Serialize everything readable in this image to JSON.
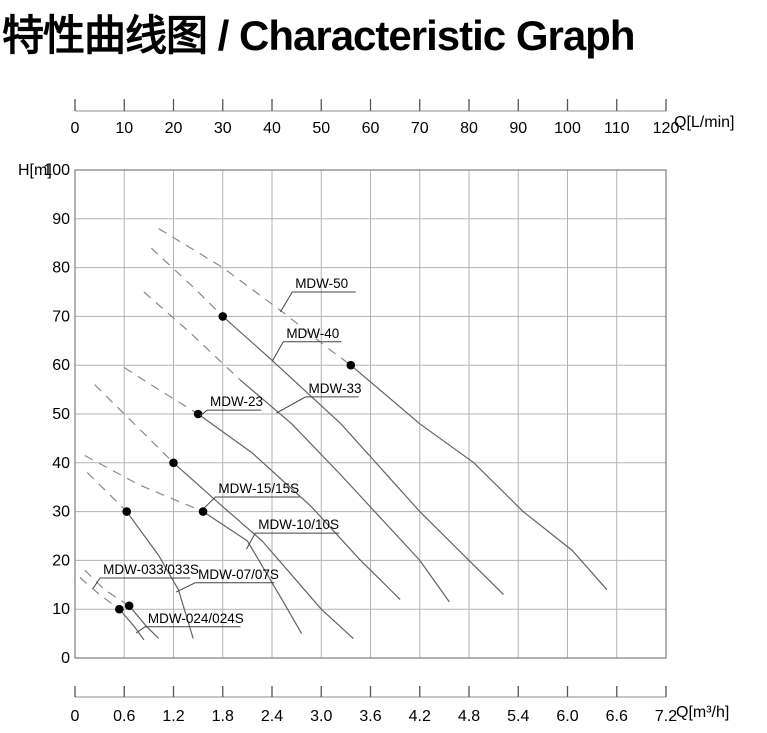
{
  "title": "特性曲线图 / Characteristic Graph",
  "chart_data": {
    "type": "line",
    "title": "特性曲线图 / Characteristic Graph",
    "grid": true,
    "top_axis": {
      "label": "Q[L/min]",
      "max": 120,
      "ticks": [
        0,
        10,
        20,
        30,
        40,
        50,
        60,
        70,
        80,
        90,
        100,
        110,
        120
      ]
    },
    "bottom_axis": {
      "label": "Q[m³/h]",
      "max": 7.2,
      "ticks": [
        "0",
        "0.6",
        "1.2",
        "1.8",
        "2.4",
        "3.0",
        "3.6",
        "4.2",
        "4.8",
        "5.4",
        "6.0",
        "6.6",
        "7.2"
      ]
    },
    "y_axis": {
      "label": "H[m]",
      "max": 100,
      "ticks": [
        100,
        90,
        80,
        70,
        60,
        50,
        40,
        30,
        20,
        10,
        0
      ]
    },
    "colors": {
      "grid": "#b3b3b3",
      "border": "#7f7f7f",
      "curve": "#636363",
      "dashed_curve": "#8a8a8a",
      "dot": "#000000",
      "text": "#000000",
      "leader": "#444444"
    },
    "units_note": "series points are [Q in L/min, H in m]; dots mark rated duty points",
    "series": [
      {
        "name": "MDW-50",
        "dashed": [
          [
            17,
            88
          ],
          [
            30,
            80
          ],
          [
            42,
            71
          ],
          [
            52,
            63
          ],
          [
            56,
            60
          ]
        ],
        "solid": [
          [
            56,
            60
          ],
          [
            70,
            48
          ],
          [
            81,
            40
          ],
          [
            91,
            30
          ],
          [
            101,
            22
          ],
          [
            108,
            14
          ]
        ],
        "dot": [
          56,
          60
        ],
        "label": {
          "text": "MDW-50",
          "underline_q": [
            44.1,
            57.0
          ],
          "underline_h": 75.0,
          "leader_end": [
            41.7,
            70.9
          ]
        }
      },
      {
        "name": "MDW-40",
        "dashed": [
          [
            15.5,
            84
          ],
          [
            24,
            76
          ],
          [
            30,
            70
          ]
        ],
        "solid": [
          [
            30,
            70
          ],
          [
            40,
            61
          ],
          [
            54,
            48
          ],
          [
            70,
            30
          ],
          [
            80,
            20
          ],
          [
            87,
            13
          ]
        ],
        "dot": [
          30,
          70
        ],
        "label": {
          "text": "MDW-40",
          "underline_q": [
            42.3,
            54.1
          ],
          "underline_h": 64.8,
          "leader_end": [
            40.1,
            60.9
          ]
        }
      },
      {
        "name": "MDW-33",
        "dashed": [
          [
            14,
            75
          ],
          [
            23,
            67
          ],
          [
            33.5,
            57
          ]
        ],
        "solid": [
          [
            33.5,
            57
          ],
          [
            44,
            48
          ],
          [
            54,
            37.5
          ],
          [
            70,
            20
          ],
          [
            76,
            11.5
          ]
        ],
        "dot": null,
        "label": {
          "text": "MDW-33",
          "underline_q": [
            46.8,
            57.6
          ],
          "underline_h": 53.5,
          "leader_end": [
            40.9,
            50.2
          ]
        }
      },
      {
        "name": "MDW-23",
        "dashed": [
          [
            10,
            59.5
          ],
          [
            17,
            55
          ],
          [
            25,
            50
          ]
        ],
        "solid": [
          [
            25,
            50
          ],
          [
            36,
            42
          ],
          [
            48,
            31
          ],
          [
            58,
            20
          ],
          [
            66,
            12
          ]
        ],
        "dot": [
          25,
          50
        ],
        "label": {
          "text": "MDW-23",
          "underline_q": [
            26.8,
            37.8
          ],
          "underline_h": 50.8,
          "leader_end": [
            25.4,
            49.6
          ]
        }
      },
      {
        "name": "MDW-15/15S",
        "dashed": [
          [
            4,
            56
          ],
          [
            13,
            47
          ],
          [
            20,
            40
          ]
        ],
        "solid": [
          [
            20,
            40
          ],
          [
            30,
            31
          ],
          [
            38,
            24
          ],
          [
            50,
            10
          ],
          [
            56.5,
            4
          ]
        ],
        "dot": [
          20,
          40
        ],
        "label": {
          "text": "MDW-15/15S",
          "underline_q": [
            28.5,
            45.6
          ],
          "underline_h": 33.0,
          "leader_end": [
            26.2,
            30.7
          ]
        }
      },
      {
        "name": "MDW-10/10S",
        "dashed": [
          [
            2,
            41.5
          ],
          [
            13,
            35.5
          ],
          [
            26,
            30
          ]
        ],
        "solid": [
          [
            26,
            30
          ],
          [
            35,
            24
          ],
          [
            42,
            12
          ],
          [
            46,
            5
          ]
        ],
        "dot": [
          26,
          30
        ],
        "label": {
          "text": "MDW-10/10S",
          "underline_q": [
            36.6,
            53.7
          ],
          "underline_h": 25.6,
          "leader_end": [
            34.8,
            22.3
          ]
        }
      },
      {
        "name": "MDW-07/07S",
        "dashed": [
          [
            2.5,
            38
          ],
          [
            7,
            33.5
          ],
          [
            10.5,
            30
          ]
        ],
        "solid": [
          [
            10.5,
            30
          ],
          [
            17,
            21
          ],
          [
            21,
            14
          ],
          [
            24,
            4
          ]
        ],
        "dot": [
          10.5,
          30
        ],
        "label": {
          "text": "MDW-07/07S",
          "underline_q": [
            24.4,
            40.5
          ],
          "underline_h": 15.4,
          "leader_end": [
            20.5,
            13.5
          ]
        }
      },
      {
        "name": "MDW-033/033S",
        "dashed": [
          [
            2,
            18
          ],
          [
            6,
            14
          ],
          [
            11,
            10.7
          ]
        ],
        "solid": [
          [
            11,
            10.7
          ],
          [
            14.5,
            6.5
          ],
          [
            17,
            4
          ]
        ],
        "dot": [
          11,
          10.7
        ],
        "label": {
          "text": "MDW-033/033S",
          "underline_q": [
            5.1,
            23.4
          ],
          "underline_h": 16.4,
          "leader_end": [
            3.7,
            14.3
          ]
        }
      },
      {
        "name": "MDW-024/024S",
        "dashed": [
          [
            1,
            16.5
          ],
          [
            5,
            13
          ],
          [
            9,
            10
          ]
        ],
        "solid": [
          [
            9,
            10
          ],
          [
            12,
            6.5
          ],
          [
            14,
            3.7
          ]
        ],
        "dot": [
          9,
          10
        ],
        "label": {
          "text": "MDW-024/024S",
          "underline_q": [
            14.2,
            33.6
          ],
          "underline_h": 6.4,
          "leader_end": [
            12.4,
            5.1
          ]
        }
      }
    ]
  }
}
